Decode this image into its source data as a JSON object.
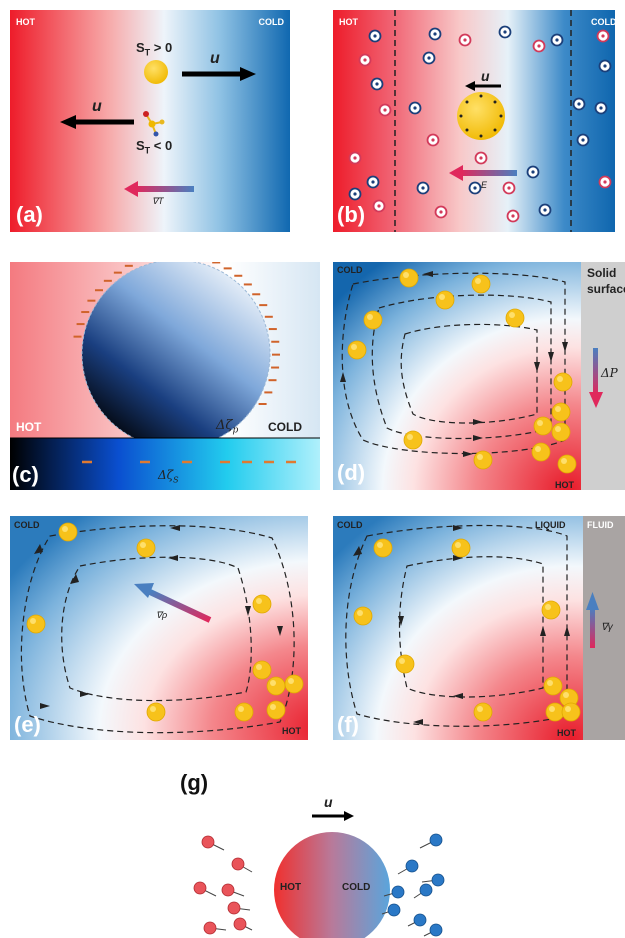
{
  "colors": {
    "hot": "#e8192c",
    "cold": "#1a6fb5",
    "particle": "#f5c21a"
  },
  "panel_a": {
    "tag": "(a)",
    "hot": "HOT",
    "cold": "COLD",
    "st_pos": "S",
    "st_pos_sub": "T",
    "st_pos_rel": " > 0",
    "st_neg": "S",
    "st_neg_sub": "T",
    "st_neg_rel": " < 0",
    "u_right": "u",
    "u_left": "u",
    "grad": "∇T"
  },
  "panel_b": {
    "tag": "(b)",
    "hot": "HOT",
    "cold": "COLD",
    "u": "u",
    "field": "E"
  },
  "panel_c": {
    "tag": "(c)",
    "hot": "HOT",
    "cold": "COLD",
    "zeta_p": "Δζ",
    "zeta_p_sub": "p",
    "zeta_s": "Δζ",
    "zeta_s_sub": "S"
  },
  "panel_d": {
    "tag": "(d)",
    "cold": "COLD",
    "hot": "HOT",
    "surface_line1": "Solid",
    "surface_line2": "surface",
    "dp": "ΔP"
  },
  "panel_e": {
    "tag": "(e)",
    "cold": "COLD",
    "hot": "HOT",
    "grad": "∇ρ"
  },
  "panel_f": {
    "tag": "(f)",
    "cold": "COLD",
    "liquid": "LIQUID",
    "fluid": "FLUID",
    "hot": "HOT",
    "grad": "∇γ"
  },
  "panel_g": {
    "tag": "(g)",
    "u": "u",
    "hot": "HOT",
    "cold": "COLD"
  }
}
